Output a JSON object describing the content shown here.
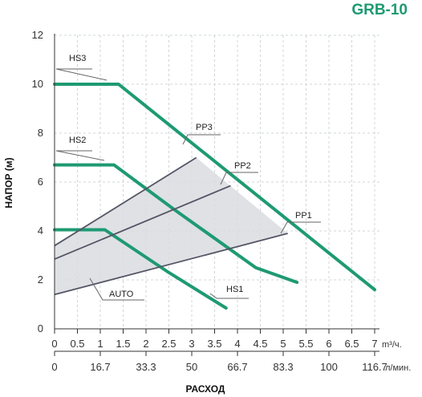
{
  "chart_data": {
    "type": "line",
    "title": "GRB-10",
    "ylabel": "НАПОР (м)",
    "xlabel": "РАСХОД",
    "ylim": [
      0,
      12
    ],
    "xlim": [
      0,
      7
    ],
    "y_ticks": [
      "0",
      "2",
      "4",
      "6",
      "8",
      "10",
      "12"
    ],
    "x_ticks_primary": [
      "0",
      "0.5",
      "1",
      "1.5",
      "2",
      "2.5",
      "3",
      "3.5",
      "4",
      "4.5",
      "5",
      "5.5",
      "6",
      "6.5",
      "7"
    ],
    "x_unit_primary": "m³/ч.",
    "x_ticks_secondary": [
      "0",
      "16.7",
      "33.3",
      "50",
      "66.7",
      "83.3",
      "100",
      "116.7"
    ],
    "x_unit_secondary": "л/мин.",
    "grid": true,
    "colors": {
      "speed_curve": "#1e9a72",
      "control_line": "#555566",
      "auto_area": "#d9dce0",
      "title": "#1e9a72"
    },
    "series": [
      {
        "name": "HS3",
        "kind": "speed",
        "x": [
          0,
          1.4,
          7
        ],
        "y": [
          10.0,
          10.0,
          1.6
        ]
      },
      {
        "name": "HS2",
        "kind": "speed",
        "x": [
          0,
          1.3,
          2.6,
          4.4,
          5.3
        ],
        "y": [
          6.7,
          6.7,
          4.9,
          2.5,
          1.9
        ]
      },
      {
        "name": "HS1",
        "kind": "speed",
        "x": [
          0,
          1.1,
          2.5,
          3.75
        ],
        "y": [
          4.05,
          4.05,
          2.3,
          0.85
        ]
      },
      {
        "name": "PP3",
        "kind": "control",
        "x": [
          0,
          3.1
        ],
        "y": [
          3.4,
          7.0
        ]
      },
      {
        "name": "PP2",
        "kind": "control",
        "x": [
          0,
          3.85
        ],
        "y": [
          2.85,
          5.85
        ]
      },
      {
        "name": "PP1",
        "kind": "control",
        "x": [
          0,
          5.1
        ],
        "y": [
          1.4,
          3.9
        ]
      },
      {
        "name": "AUTO",
        "kind": "area",
        "x": [
          0,
          3.1,
          5.1,
          0
        ],
        "y": [
          3.4,
          7.0,
          3.9,
          1.4
        ]
      }
    ]
  }
}
